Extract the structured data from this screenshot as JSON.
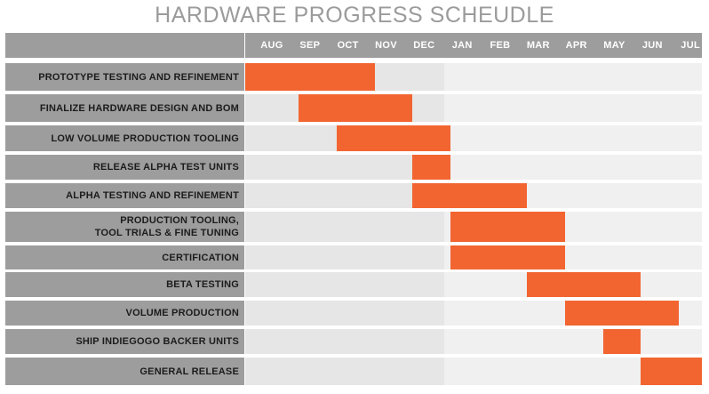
{
  "chart_data": {
    "type": "gantt",
    "title": "HARDWARE PROGRESS SCHEUDLE",
    "months": [
      "AUG",
      "SEP",
      "OCT",
      "NOV",
      "DEC",
      "JAN",
      "FEB",
      "MAR",
      "APR",
      "MAY",
      "JUN",
      "JUL"
    ],
    "tasks": [
      {
        "label": "PROTOTYPE TESTING AND REFINEMENT",
        "start": 0,
        "end": 3.4
      },
      {
        "label": "FINALIZE HARDWARE DESIGN AND BOM",
        "start": 1.4,
        "end": 4.4
      },
      {
        "label": "LOW VOLUME PRODUCTION TOOLING",
        "start": 2.4,
        "end": 5.4
      },
      {
        "label": "RELEASE ALPHA TEST UNITS",
        "start": 4.4,
        "end": 5.4
      },
      {
        "label": "ALPHA TESTING AND REFINEMENT",
        "start": 4.4,
        "end": 7.4
      },
      {
        "label": "PRODUCTION TOOLING,\nTOOL TRIALS & FINE TUNING",
        "start": 5.4,
        "end": 8.4
      },
      {
        "label": "CERTIFICATION",
        "start": 5.4,
        "end": 8.4
      },
      {
        "label": "BETA TESTING",
        "start": 7.4,
        "end": 10.4
      },
      {
        "label": "VOLUME PRODUCTION",
        "start": 8.4,
        "end": 11.4
      },
      {
        "label": "SHIP INDIEGOGO BACKER UNITS",
        "start": 9.4,
        "end": 10.4
      },
      {
        "label": "GENERAL RELEASE",
        "start": 10.4,
        "end": 12.4
      }
    ],
    "colors": {
      "bar": "#f26531",
      "header": "#9d9d9d",
      "label_bg": "#9d9d9d",
      "row_past": "#e6e6e6",
      "row_future": "#f0f0f0",
      "title": "#9b9b9b"
    }
  }
}
